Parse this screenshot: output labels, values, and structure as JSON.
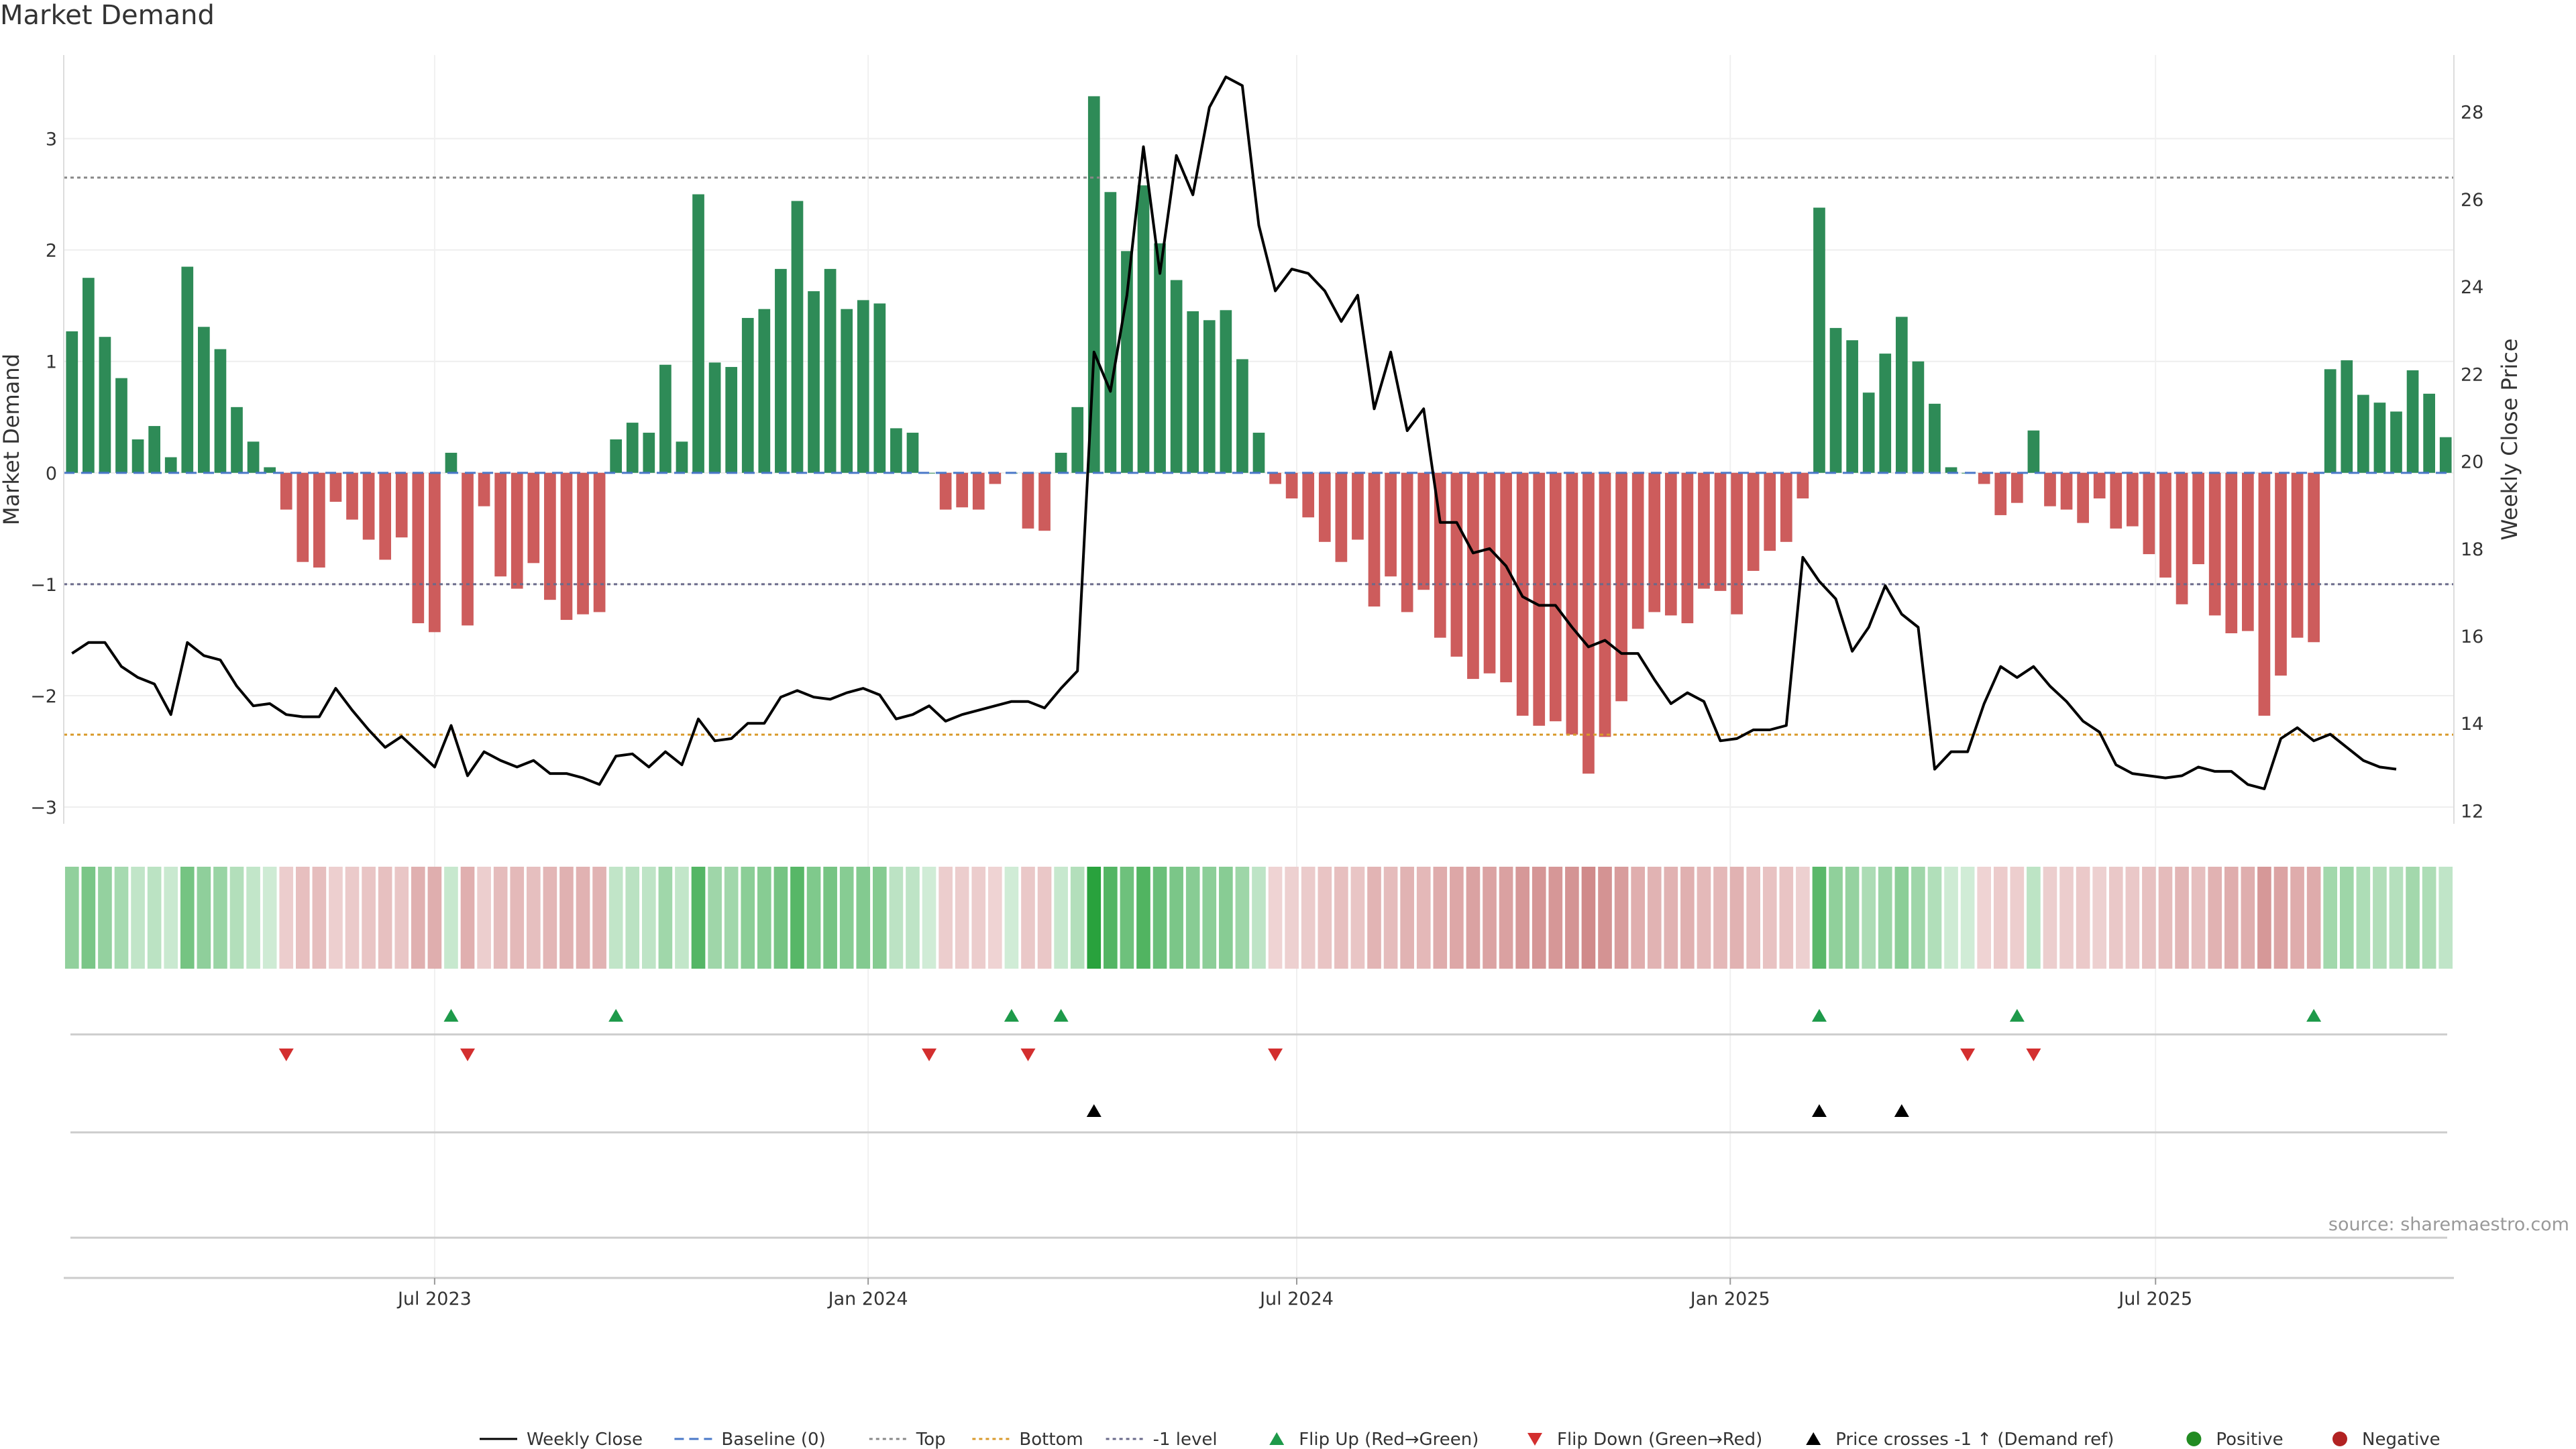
{
  "title": "Market Demand",
  "source": "source: sharemaestro.com",
  "colors": {
    "positive": "#2e8b57",
    "negative": "#cd5c5c",
    "line": "#000000",
    "baseline": "#4a78c8",
    "top_line": "#888888",
    "bottom_line": "#d99a2b",
    "minus1_line": "#6a6a8a",
    "flip_up": "#1e9a4a",
    "flip_down": "#d32f2f",
    "cross": "#000000",
    "pos_marker": "#228b22",
    "neg_marker": "#b22222"
  },
  "chart_data": {
    "type": "bar",
    "title": "Market Demand",
    "ylabel": "Market Demand",
    "y2label": "Weekly Close Price",
    "ylim": [
      -3.15,
      3.75
    ],
    "y2lim": [
      11.7,
      29.3
    ],
    "yticks": [
      -3,
      -2,
      -1,
      0,
      1,
      2,
      3
    ],
    "y2ticks": [
      12,
      14,
      16,
      18,
      20,
      22,
      24,
      26,
      28
    ],
    "reference_levels": {
      "baseline": 0,
      "top": 2.65,
      "bottom": -2.35,
      "minus1": -1
    },
    "x_ticks": [
      {
        "index": 22,
        "label": "Jul 2023"
      },
      {
        "index": 48.3,
        "label": "Jan 2024"
      },
      {
        "index": 74.3,
        "label": "Jul 2024"
      },
      {
        "index": 100.6,
        "label": "Jan 2025"
      },
      {
        "index": 126.4,
        "label": "Jul 2025"
      }
    ],
    "demand": [
      1.27,
      1.75,
      1.22,
      0.85,
      0.3,
      0.42,
      0.14,
      1.85,
      1.31,
      1.11,
      0.59,
      0.28,
      0.05,
      -0.33,
      -0.8,
      -0.85,
      -0.26,
      -0.42,
      -0.6,
      -0.78,
      -0.58,
      -1.35,
      -1.43,
      0.18,
      -1.37,
      -0.3,
      -0.93,
      -1.04,
      -0.81,
      -1.14,
      -1.32,
      -1.27,
      -1.25,
      0.3,
      0.45,
      0.36,
      0.97,
      0.28,
      2.5,
      0.99,
      0.95,
      1.39,
      1.47,
      1.83,
      2.44,
      1.63,
      1.83,
      1.47,
      1.55,
      1.52,
      0.4,
      0.36,
      0.0,
      -0.33,
      -0.31,
      -0.33,
      -0.1,
      0.0,
      -0.5,
      -0.52,
      0.18,
      0.59,
      3.38,
      2.52,
      1.99,
      2.58,
      2.06,
      1.73,
      1.45,
      1.37,
      1.46,
      1.02,
      0.36,
      -0.1,
      -0.23,
      -0.4,
      -0.62,
      -0.8,
      -0.6,
      -1.2,
      -0.93,
      -1.25,
      -1.05,
      -1.48,
      -1.65,
      -1.85,
      -1.8,
      -1.88,
      -2.18,
      -2.27,
      -2.23,
      -2.35,
      -2.7,
      -2.37,
      -2.05,
      -1.4,
      -1.25,
      -1.28,
      -1.35,
      -1.04,
      -1.06,
      -1.27,
      -0.88,
      -0.7,
      -0.62,
      -0.23,
      2.38,
      1.3,
      1.19,
      0.72,
      1.07,
      1.4,
      1.0,
      0.62,
      0.05,
      0.0,
      -0.1,
      -0.38,
      -0.27,
      0.38,
      -0.3,
      -0.33,
      -0.45,
      -0.23,
      -0.5,
      -0.48,
      -0.73,
      -0.94,
      -1.18,
      -0.82,
      -1.28,
      -1.44,
      -1.42,
      -2.18,
      -1.82,
      -1.48,
      -1.52,
      0.93,
      1.01,
      0.7,
      0.63,
      0.55,
      0.92,
      0.71,
      0.32
    ],
    "weekly_close": [
      15.6,
      15.85,
      15.85,
      15.3,
      15.05,
      14.9,
      14.2,
      15.85,
      15.55,
      15.45,
      14.85,
      14.4,
      14.45,
      14.2,
      14.15,
      14.15,
      14.8,
      14.3,
      13.85,
      13.45,
      13.7,
      13.35,
      13.0,
      13.95,
      12.8,
      13.35,
      13.15,
      13.0,
      13.15,
      12.85,
      12.85,
      12.75,
      12.6,
      13.25,
      13.3,
      13.0,
      13.35,
      13.05,
      14.1,
      13.6,
      13.65,
      14.0,
      14.0,
      14.6,
      14.75,
      14.6,
      14.55,
      14.7,
      14.8,
      14.65,
      14.1,
      14.2,
      14.4,
      14.05,
      14.2,
      14.3,
      14.4,
      14.5,
      14.5,
      14.35,
      14.8,
      15.2,
      22.5,
      21.6,
      23.8,
      27.2,
      24.3,
      27.0,
      26.1,
      28.1,
      28.8,
      28.6,
      25.4,
      23.9,
      24.4,
      24.3,
      23.9,
      23.2,
      23.8,
      21.2,
      22.5,
      20.7,
      21.2,
      18.6,
      18.6,
      17.9,
      18.0,
      17.6,
      16.9,
      16.7,
      16.7,
      16.2,
      15.75,
      15.9,
      15.6,
      15.6,
      15.0,
      14.45,
      14.7,
      14.5,
      13.6,
      13.65,
      13.85,
      13.85,
      13.95,
      17.8,
      17.25,
      16.85,
      15.65,
      16.2,
      17.15,
      16.5,
      16.2,
      12.95,
      13.35,
      13.35,
      14.45,
      15.3,
      15.05,
      15.3,
      14.85,
      14.5,
      14.05,
      13.8,
      13.05,
      12.85,
      12.8,
      12.75,
      12.8,
      13.0,
      12.9,
      12.9,
      12.6,
      12.5,
      13.65,
      13.9,
      13.6,
      13.75,
      13.45,
      13.15,
      13.0,
      12.95
    ],
    "flip_up": [
      23,
      33,
      57,
      60,
      106,
      118,
      136
    ],
    "flip_down": [
      13,
      24,
      52,
      58,
      73,
      115,
      119
    ],
    "price_cross_up": [
      62,
      106,
      111
    ]
  },
  "legend": [
    {
      "label": "Weekly Close",
      "symbol": "line-solid"
    },
    {
      "label": "Baseline (0)",
      "symbol": "line-dashed"
    },
    {
      "label": "Top",
      "symbol": "line-dotted-gray"
    },
    {
      "label": "Bottom",
      "symbol": "line-dotted-orange"
    },
    {
      "label": "-1 level",
      "symbol": "line-dotted-slate"
    },
    {
      "label": "Flip Up (Red→Green)",
      "symbol": "triangle-up-green"
    },
    {
      "label": "Flip Down (Green→Red)",
      "symbol": "triangle-down-red"
    },
    {
      "label": "Price crosses -1 ↑ (Demand ref)",
      "symbol": "triangle-up-black"
    },
    {
      "label": "Positive",
      "symbol": "circle-green"
    },
    {
      "label": "Negative",
      "symbol": "circle-red"
    }
  ]
}
